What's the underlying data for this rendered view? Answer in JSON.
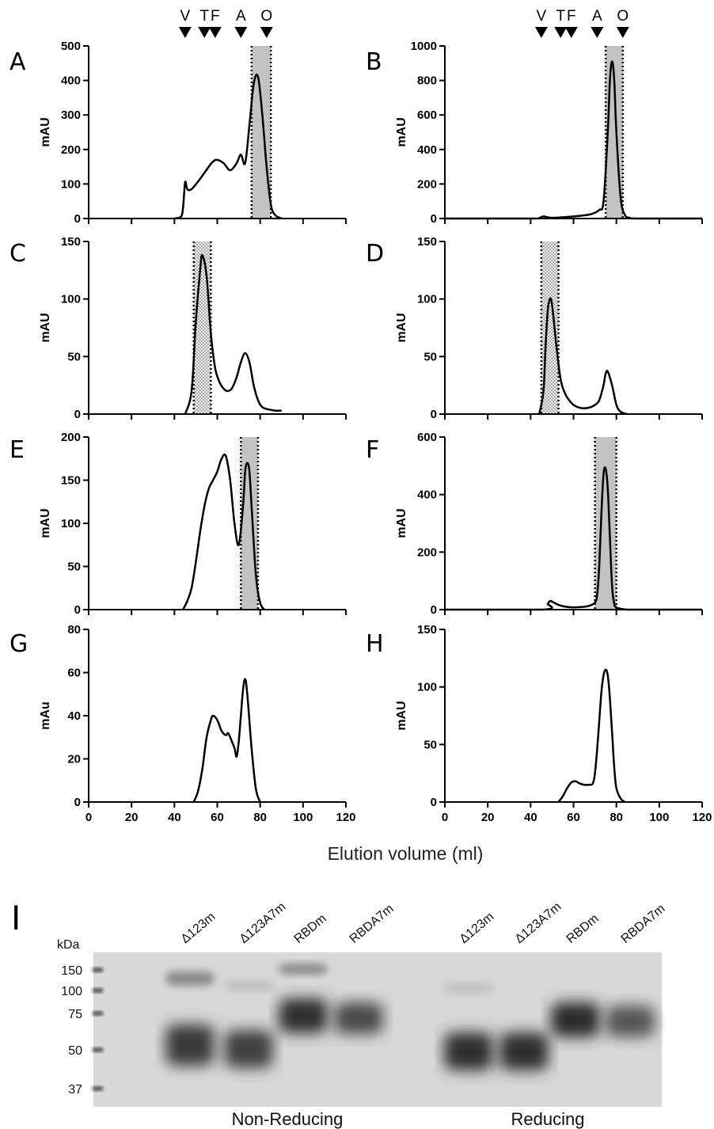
{
  "chart_data": [
    {
      "id": "A",
      "type": "line",
      "ylabel": "mAU",
      "xlim": [
        0,
        120
      ],
      "ylim": [
        0,
        500
      ],
      "yticks": [
        0,
        100,
        200,
        300,
        400,
        500
      ],
      "xticks": [
        "0",
        "20",
        "40",
        "60",
        "80",
        "100",
        "120"
      ],
      "show_xtick_labels": false,
      "shade": {
        "range": [
          76,
          85
        ],
        "style": "gray"
      },
      "x": [
        40,
        43,
        44,
        45,
        46,
        48,
        52,
        56,
        58,
        60,
        63,
        66,
        69,
        71,
        73,
        75,
        77,
        79,
        81,
        83,
        85,
        87,
        90
      ],
      "values": [
        0,
        5,
        30,
        105,
        85,
        85,
        115,
        150,
        165,
        170,
        160,
        140,
        160,
        185,
        160,
        270,
        390,
        410,
        300,
        150,
        40,
        10,
        0
      ]
    },
    {
      "id": "B",
      "type": "line",
      "ylabel": "mAU",
      "xlim": [
        0,
        120
      ],
      "ylim": [
        0,
        1000
      ],
      "yticks": [
        0,
        200,
        400,
        600,
        800,
        1000
      ],
      "xticks": [
        "0",
        "20",
        "40",
        "60",
        "80",
        "100",
        "120"
      ],
      "show_xtick_labels": false,
      "shade": {
        "range": [
          75,
          83
        ],
        "style": "gray"
      },
      "x": [
        0,
        40,
        44,
        46,
        50,
        60,
        68,
        72,
        74,
        76,
        77,
        78,
        79,
        80,
        82,
        84,
        86,
        90,
        120
      ],
      "values": [
        0,
        0,
        3,
        12,
        4,
        12,
        25,
        50,
        100,
        500,
        800,
        910,
        800,
        500,
        120,
        20,
        5,
        0,
        0
      ]
    },
    {
      "id": "C",
      "type": "line",
      "ylabel": "mAU",
      "xlim": [
        0,
        120
      ],
      "ylim": [
        0,
        150
      ],
      "yticks": [
        0,
        50,
        100,
        150
      ],
      "xticks": [
        "0",
        "20",
        "40",
        "60",
        "80",
        "100",
        "120"
      ],
      "show_xtick_labels": false,
      "shade": {
        "range": [
          49,
          57
        ],
        "style": "dotted"
      },
      "x": [
        45,
        48,
        50,
        52,
        53,
        55,
        57,
        59,
        61,
        63,
        65,
        67,
        69,
        71,
        73,
        75,
        77,
        79,
        81,
        84,
        87,
        90
      ],
      "values": [
        0,
        20,
        80,
        125,
        138,
        120,
        70,
        40,
        28,
        22,
        20,
        23,
        32,
        45,
        53,
        45,
        25,
        12,
        6,
        4,
        3,
        3
      ]
    },
    {
      "id": "D",
      "type": "line",
      "ylabel": "mAU",
      "xlim": [
        0,
        120
      ],
      "ylim": [
        0,
        150
      ],
      "yticks": [
        0,
        50,
        100,
        150
      ],
      "xticks": [
        "0",
        "20",
        "40",
        "60",
        "80",
        "100",
        "120"
      ],
      "show_xtick_labels": false,
      "shade": {
        "range": [
          45,
          53
        ],
        "style": "dotted"
      },
      "x": [
        44,
        46,
        47,
        48,
        49,
        50,
        52,
        54,
        56,
        58,
        60,
        62,
        65,
        68,
        70,
        72,
        74,
        75,
        76,
        78,
        80,
        82,
        85
      ],
      "values": [
        0,
        20,
        60,
        90,
        100,
        95,
        60,
        30,
        18,
        12,
        8,
        6,
        5,
        6,
        8,
        12,
        25,
        35,
        37,
        25,
        8,
        2,
        0
      ]
    },
    {
      "id": "E",
      "type": "line",
      "ylabel": "mAU",
      "xlim": [
        0,
        120
      ],
      "ylim": [
        0,
        200
      ],
      "yticks": [
        0,
        50,
        100,
        150,
        200
      ],
      "xticks": [
        "0",
        "20",
        "40",
        "60",
        "80",
        "100",
        "120"
      ],
      "show_xtick_labels": false,
      "shade": {
        "range": [
          71,
          79
        ],
        "style": "gray"
      },
      "x": [
        44,
        46,
        48,
        50,
        52,
        54,
        56,
        58,
        60,
        62,
        64,
        66,
        68,
        70,
        72,
        73,
        74,
        75,
        76,
        78,
        80,
        82
      ],
      "values": [
        0,
        10,
        25,
        55,
        90,
        120,
        140,
        150,
        160,
        175,
        178,
        150,
        100,
        75,
        120,
        160,
        170,
        160,
        120,
        40,
        8,
        0
      ]
    },
    {
      "id": "F",
      "type": "line",
      "ylabel": "mAU",
      "xlim": [
        0,
        120
      ],
      "ylim": [
        0,
        600
      ],
      "yticks": [
        0,
        200,
        400,
        600
      ],
      "xticks": [
        "0",
        "20",
        "40",
        "60",
        "80",
        "100",
        "120"
      ],
      "show_xtick_labels": false,
      "shade": {
        "range": [
          70,
          80
        ],
        "style": "gray"
      },
      "x": [
        0,
        46,
        48,
        49,
        50,
        52,
        55,
        60,
        65,
        68,
        70,
        71,
        72,
        73,
        74,
        75,
        76,
        77,
        78,
        79,
        80,
        82,
        85,
        90,
        120
      ],
      "values": [
        0,
        0,
        20,
        30,
        28,
        20,
        12,
        8,
        10,
        15,
        25,
        50,
        150,
        330,
        470,
        490,
        420,
        250,
        80,
        20,
        8,
        3,
        0,
        0,
        0
      ]
    },
    {
      "id": "G",
      "type": "line",
      "ylabel": "mAu",
      "xlim": [
        0,
        120
      ],
      "ylim": [
        0,
        80
      ],
      "yticks": [
        0,
        20,
        40,
        60,
        80
      ],
      "xticks": [
        "0",
        "20",
        "40",
        "60",
        "80",
        "100",
        "120"
      ],
      "show_xtick_labels": true,
      "x": [
        49,
        51,
        53,
        55,
        57,
        58,
        60,
        62,
        64,
        65,
        66,
        68,
        69,
        70,
        71,
        72,
        73,
        74,
        76,
        78,
        80
      ],
      "values": [
        0,
        5,
        15,
        30,
        38,
        40,
        38,
        33,
        31,
        32,
        30,
        25,
        21,
        28,
        40,
        52,
        57,
        50,
        25,
        6,
        0
      ]
    },
    {
      "id": "H",
      "type": "line",
      "ylabel": "mAU",
      "xlim": [
        0,
        120
      ],
      "ylim": [
        0,
        150
      ],
      "yticks": [
        0,
        50,
        100,
        150
      ],
      "xticks": [
        "0",
        "20",
        "40",
        "60",
        "80",
        "100",
        "120"
      ],
      "show_xtick_labels": true,
      "x": [
        53,
        55,
        57,
        59,
        61,
        63,
        65,
        67,
        69,
        70,
        71,
        72,
        73,
        74,
        75,
        76,
        77,
        78,
        79,
        80,
        82,
        84
      ],
      "values": [
        0,
        5,
        12,
        17,
        18,
        16,
        15,
        15,
        16,
        25,
        45,
        70,
        95,
        110,
        115,
        110,
        90,
        60,
        30,
        12,
        3,
        0
      ]
    }
  ],
  "x_axis_title": "Elution volume (ml)",
  "markers": {
    "labels": [
      "V",
      "T",
      "F",
      "A",
      "O"
    ],
    "positions": [
      45,
      54,
      59,
      71,
      83
    ]
  },
  "gel": {
    "panel_label": "I",
    "kda_label": "kDa",
    "mw_markers": [
      "150",
      "100",
      "75",
      "50",
      "37"
    ],
    "lanes": [
      "Δ123m",
      "Δ123A7m",
      "RBDm",
      "RBDA7m",
      "Δ123m",
      "Δ123A7m",
      "RBDm",
      "RBDA7m"
    ],
    "condition_labels": [
      "Non-Reducing",
      "Reducing"
    ]
  }
}
